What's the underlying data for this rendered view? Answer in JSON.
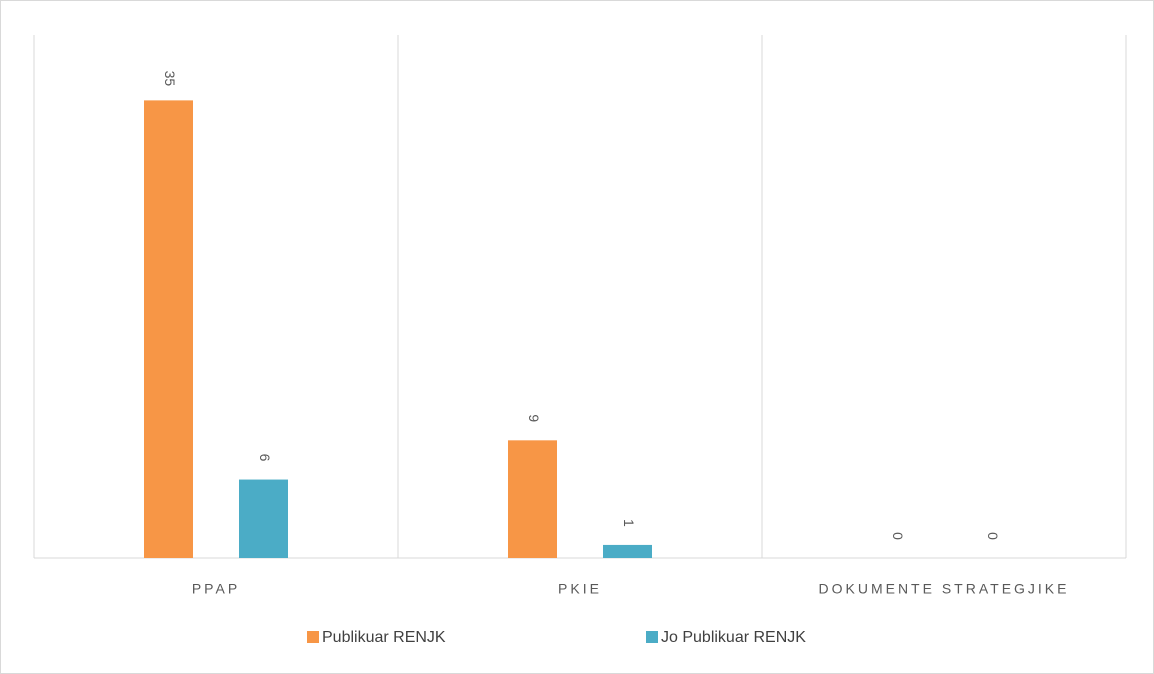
{
  "chart_data": {
    "type": "bar",
    "categories": [
      "PPAP",
      "PKIE",
      "DOKUMENTE STRATEGJIKE"
    ],
    "series": [
      {
        "name": "Publikuar RENJK",
        "color": "#f79646",
        "values": [
          35,
          9,
          0
        ]
      },
      {
        "name": "Jo Publikuar RENJK",
        "color": "#4bacc6",
        "values": [
          6,
          1,
          0
        ]
      }
    ],
    "ylim": [
      0,
      40
    ],
    "legend": "bottom"
  }
}
